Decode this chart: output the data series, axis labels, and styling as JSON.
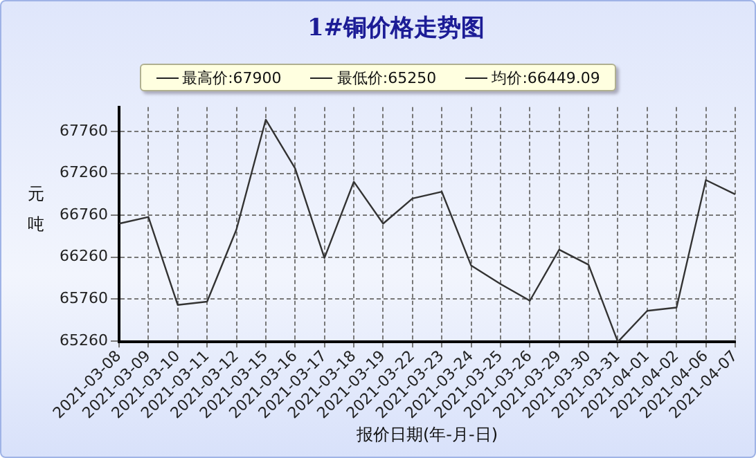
{
  "chart_data": {
    "type": "line",
    "title": "1#铜价格走势图",
    "xlabel": "报价日期(年-月-日)",
    "ylabel": "元吨",
    "annotations": [
      "最高价:67900",
      "最低价:65250",
      "均价:66449.09"
    ],
    "categories": [
      "2021-03-08",
      "2021-03-09",
      "2021-03-10",
      "2021-03-11",
      "2021-03-12",
      "2021-03-15",
      "2021-03-16",
      "2021-03-17",
      "2021-03-18",
      "2021-03-19",
      "2021-03-22",
      "2021-03-23",
      "2021-03-24",
      "2021-03-25",
      "2021-03-26",
      "2021-03-29",
      "2021-03-30",
      "2021-03-31",
      "2021-04-01",
      "2021-04-02",
      "2021-04-06",
      "2021-04-07"
    ],
    "series": [
      {
        "color": "#333333",
        "values": [
          66660,
          66740,
          65690,
          65730,
          66590,
          67900,
          67320,
          66250,
          67160,
          66660,
          66960,
          67040,
          66160,
          65940,
          65740,
          66350,
          66170,
          65250,
          65620,
          65660,
          67180,
          67010
        ]
      }
    ],
    "ylim": [
      65250,
      68050
    ],
    "yticks": [
      65260,
      65760,
      66260,
      66760,
      67260,
      67760
    ],
    "grid": true,
    "legend": false,
    "marker": "none",
    "line_style": "solid"
  }
}
